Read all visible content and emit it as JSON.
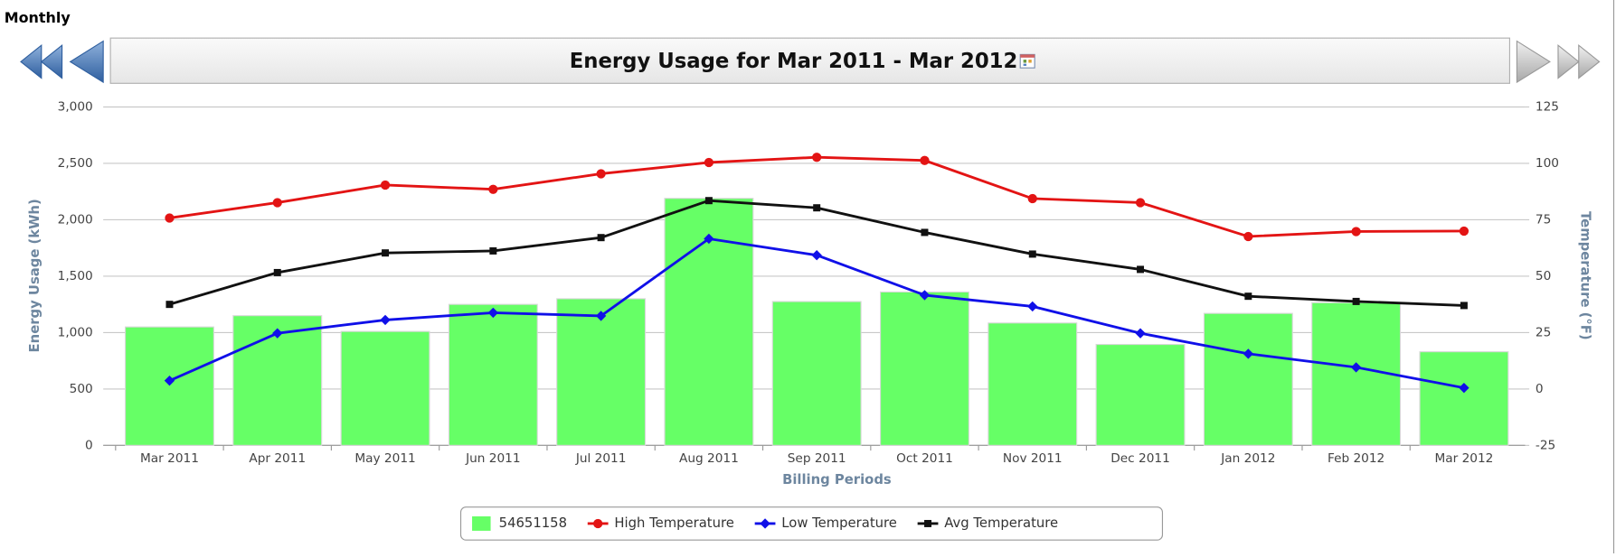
{
  "page_label": "Monthly",
  "chart_data": {
    "type": "bar",
    "title": "Energy Usage for Mar 2011 - Mar 2012",
    "x_label": "Billing Periods",
    "y_label": "Energy Usage (kWh)",
    "y2_label": "Temperature (°F)",
    "categories": [
      "Mar 2011",
      "Apr 2011",
      "May 2011",
      "Jun 2011",
      "Jul 2011",
      "Aug 2011",
      "Sep 2011",
      "Oct 2011",
      "Nov 2011",
      "Dec 2011",
      "Jan 2012",
      "Feb 2012",
      "Mar 2012"
    ],
    "ylim": [
      0,
      3000
    ],
    "yticks": [
      0,
      500,
      {
        "value": 1000,
        "label": "1,000"
      },
      {
        "value": 1500,
        "label": "1,500"
      },
      {
        "value": 2000,
        "label": "2,000"
      },
      {
        "value": 2500,
        "label": "2,500"
      },
      {
        "value": 3000,
        "label": "3,000"
      }
    ],
    "y2lim": [
      -25,
      125
    ],
    "y2ticks": [
      -25,
      0,
      25,
      50,
      75,
      100,
      125
    ],
    "grid": true,
    "legend": "bottom",
    "series": [
      {
        "name": "54651158",
        "type": "bar",
        "color": "#66ff66",
        "values": [
          1050,
          1150,
          1010,
          1250,
          1300,
          2190,
          1275,
          1360,
          1085,
          895,
          1170,
          1265,
          830
        ]
      },
      {
        "name": "High Temperature",
        "type": "line",
        "marker": "circle",
        "axis": "y2",
        "color": "#e31414",
        "values": [
          75.8,
          82.6,
          90.4,
          88.5,
          95.4,
          100.4,
          102.7,
          101.3,
          84.4,
          82.6,
          67.6,
          69.8,
          70
        ]
      },
      {
        "name": "Low Temperature",
        "type": "line",
        "marker": "diamond",
        "axis": "y2",
        "color": "#1010e8",
        "values": [
          3.7,
          24.7,
          30.6,
          33.8,
          32.4,
          66.6,
          59.3,
          41.6,
          36.6,
          24.7,
          15.6,
          9.6,
          0.5
        ]
      },
      {
        "name": "Avg Temperature",
        "type": "line",
        "marker": "square",
        "axis": "y2",
        "color": "#111111",
        "values": [
          37.5,
          51.6,
          60.3,
          61.2,
          67.1,
          83.5,
          80.3,
          69.4,
          59.8,
          53,
          41.1,
          38.8,
          37
        ]
      }
    ]
  }
}
